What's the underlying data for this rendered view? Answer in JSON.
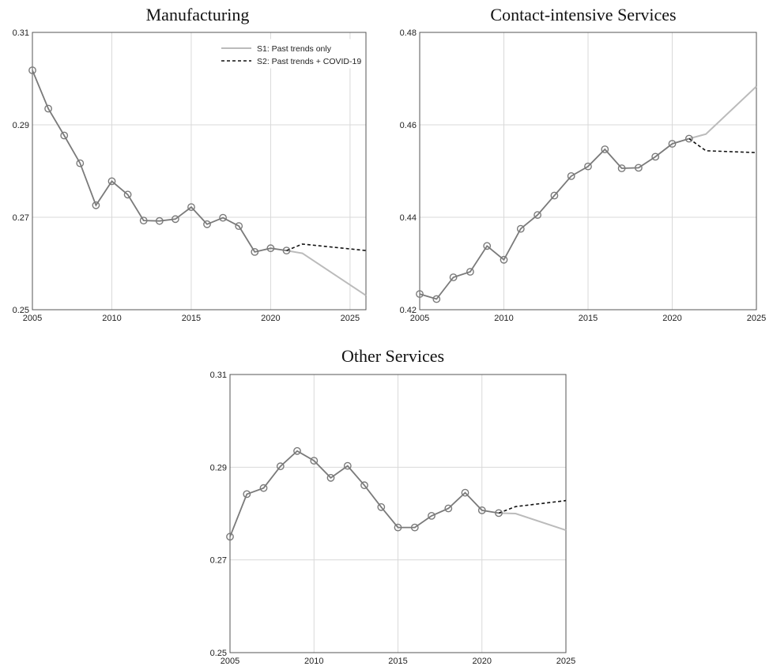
{
  "chart_data": [
    {
      "type": "line",
      "title": "Manufacturing",
      "xlabel": "",
      "ylabel": "",
      "xlim": [
        2005,
        2026
      ],
      "ylim": [
        0.25,
        0.31
      ],
      "x_ticks": [
        "2005",
        "2010",
        "2015",
        "2020",
        "2025"
      ],
      "y_ticks": [
        "0.25",
        "0.27",
        "0.29",
        "0.31"
      ],
      "grid": true,
      "legend": "top-right",
      "historical": {
        "x": [
          2005,
          2006,
          2007,
          2008,
          2009,
          2010,
          2011,
          2012,
          2013,
          2014,
          2015,
          2016,
          2017,
          2018,
          2019,
          2020,
          2021
        ],
        "y": [
          0.3018,
          0.2935,
          0.2877,
          0.2817,
          0.2726,
          0.2778,
          0.2749,
          0.2693,
          0.2692,
          0.2696,
          0.2722,
          0.2685,
          0.2699,
          0.2681,
          0.2625,
          0.2633,
          0.2628
        ]
      },
      "series": [
        {
          "name": "S1: Past trends only",
          "style": "solid",
          "color": "#bbbbbb",
          "x": [
            2021,
            2022,
            2026
          ],
          "y": [
            0.2628,
            0.2622,
            0.2531
          ]
        },
        {
          "name": "S2: Past trends + COVID-19",
          "style": "dashed",
          "color": "#111111",
          "x": [
            2021,
            2022,
            2026
          ],
          "y": [
            0.2628,
            0.2642,
            0.2628
          ]
        }
      ]
    },
    {
      "type": "line",
      "title": "Contact-intensive Services",
      "xlabel": "",
      "ylabel": "",
      "xlim": [
        2005,
        2025
      ],
      "ylim": [
        0.42,
        0.48
      ],
      "x_ticks": [
        "2005",
        "2010",
        "2015",
        "2020",
        "2025"
      ],
      "y_ticks": [
        "0.42",
        "0.44",
        "0.46",
        "0.48"
      ],
      "grid": true,
      "historical": {
        "x": [
          2005,
          2006,
          2007,
          2008,
          2009,
          2010,
          2011,
          2012,
          2013,
          2014,
          2015,
          2016,
          2017,
          2018,
          2019,
          2020,
          2021
        ],
        "y": [
          0.4234,
          0.4223,
          0.427,
          0.4282,
          0.4338,
          0.4308,
          0.4375,
          0.4405,
          0.4447,
          0.4489,
          0.451,
          0.4547,
          0.4506,
          0.4507,
          0.4531,
          0.4559,
          0.457
        ]
      },
      "series": [
        {
          "name": "S1: Past trends only",
          "style": "solid",
          "color": "#bbbbbb",
          "x": [
            2021,
            2022,
            2025
          ],
          "y": [
            0.457,
            0.458,
            0.4683
          ]
        },
        {
          "name": "S2: Past trends + COVID-19",
          "style": "dashed",
          "color": "#111111",
          "x": [
            2021,
            2022,
            2025
          ],
          "y": [
            0.457,
            0.4544,
            0.454
          ]
        }
      ]
    },
    {
      "type": "line",
      "title": "Other Services",
      "xlabel": "",
      "ylabel": "",
      "xlim": [
        2005,
        2025
      ],
      "ylim": [
        0.25,
        0.31
      ],
      "x_ticks": [
        "2005",
        "2010",
        "2015",
        "2020",
        "2025"
      ],
      "y_ticks": [
        "0.25",
        "0.27",
        "0.29",
        "0.31"
      ],
      "grid": true,
      "historical": {
        "x": [
          2005,
          2006,
          2007,
          2008,
          2009,
          2010,
          2011,
          2012,
          2013,
          2014,
          2015,
          2016,
          2017,
          2018,
          2019,
          2020,
          2021
        ],
        "y": [
          0.275,
          0.2842,
          0.2855,
          0.2902,
          0.2935,
          0.2914,
          0.2877,
          0.2903,
          0.2861,
          0.2814,
          0.277,
          0.277,
          0.2795,
          0.2811,
          0.2845,
          0.2807,
          0.2801
        ]
      },
      "series": [
        {
          "name": "S1: Past trends only",
          "style": "solid",
          "color": "#bbbbbb",
          "x": [
            2021,
            2022,
            2025
          ],
          "y": [
            0.2801,
            0.28,
            0.2764
          ]
        },
        {
          "name": "S2: Past trends + COVID-19",
          "style": "dashed",
          "color": "#111111",
          "x": [
            2021,
            2022,
            2025
          ],
          "y": [
            0.2801,
            0.2815,
            0.2828
          ]
        }
      ]
    }
  ]
}
